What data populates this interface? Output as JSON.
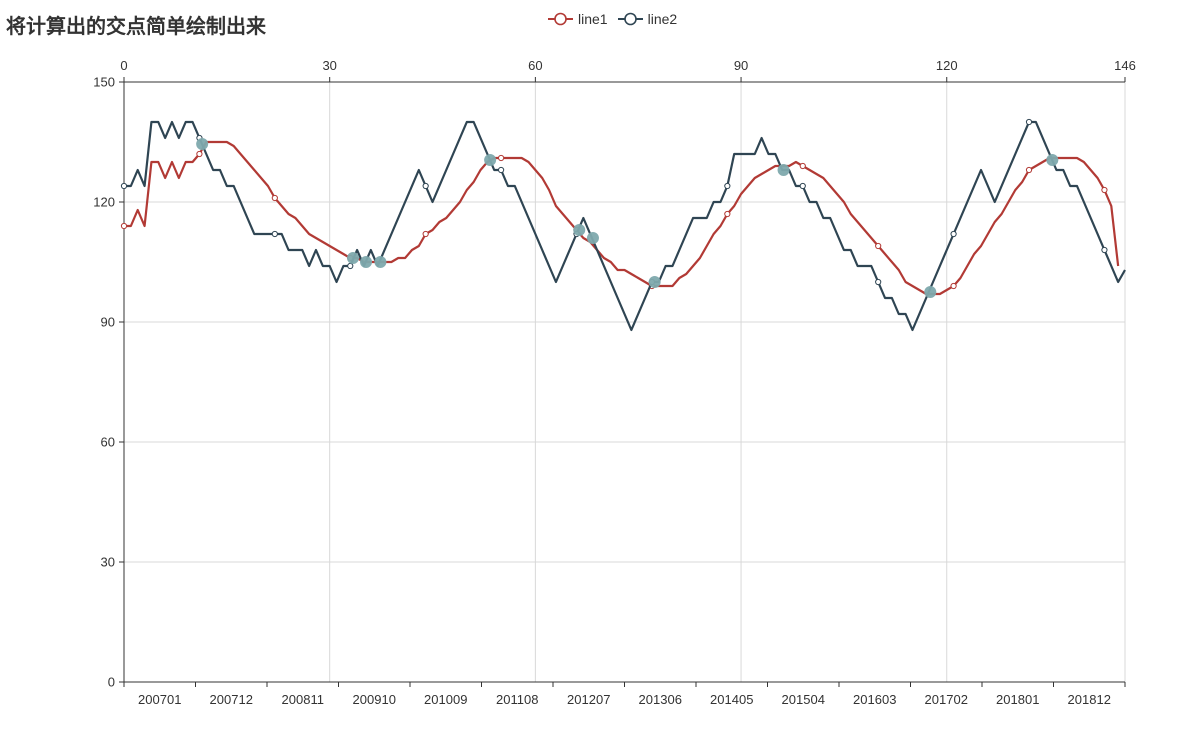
{
  "title": "将计算出的交点简单绘制出来",
  "legend": [
    {
      "name": "line1",
      "color": "#b23a35"
    },
    {
      "name": "line2",
      "color": "#2f4553"
    }
  ],
  "chart_data": {
    "type": "line",
    "title": "将计算出的交点简单绘制出来",
    "x_bottom": {
      "ticks": [
        "200701",
        "200712",
        "200811",
        "200910",
        "201009",
        "201108",
        "201207",
        "201306",
        "201405",
        "201504",
        "201603",
        "201702",
        "201801",
        "201812"
      ],
      "range": [
        200701,
        201812
      ]
    },
    "x_top": {
      "ticks": [
        0,
        30,
        60,
        90,
        120,
        146
      ],
      "range": [
        0,
        146
      ]
    },
    "y": {
      "ticks": [
        0,
        30,
        60,
        90,
        120,
        150
      ],
      "range": [
        0,
        150
      ]
    },
    "grid": true,
    "legend_position": "top-center",
    "series": [
      {
        "name": "line1",
        "color": "#b23a35",
        "points": [
          [
            0,
            114
          ],
          [
            1,
            114
          ],
          [
            2,
            118
          ],
          [
            3,
            114
          ],
          [
            4,
            130
          ],
          [
            5,
            130
          ],
          [
            6,
            126
          ],
          [
            7,
            130
          ],
          [
            8,
            126
          ],
          [
            9,
            130
          ],
          [
            10,
            130
          ],
          [
            11,
            132
          ],
          [
            12,
            135
          ],
          [
            13,
            135
          ],
          [
            14,
            135
          ],
          [
            15,
            135
          ],
          [
            16,
            134
          ],
          [
            17,
            132
          ],
          [
            18,
            130
          ],
          [
            19,
            128
          ],
          [
            20,
            126
          ],
          [
            21,
            124
          ],
          [
            22,
            121
          ],
          [
            23,
            119
          ],
          [
            24,
            117
          ],
          [
            25,
            116
          ],
          [
            26,
            114
          ],
          [
            27,
            112
          ],
          [
            28,
            111
          ],
          [
            29,
            110
          ],
          [
            30,
            109
          ],
          [
            31,
            108
          ],
          [
            32,
            107
          ],
          [
            33,
            106
          ],
          [
            34,
            106
          ],
          [
            35,
            105
          ],
          [
            36,
            105
          ],
          [
            37,
            105
          ],
          [
            38,
            105
          ],
          [
            39,
            105
          ],
          [
            40,
            106
          ],
          [
            41,
            106
          ],
          [
            42,
            108
          ],
          [
            43,
            109
          ],
          [
            44,
            112
          ],
          [
            45,
            113
          ],
          [
            46,
            115
          ],
          [
            47,
            116
          ],
          [
            48,
            118
          ],
          [
            49,
            120
          ],
          [
            50,
            123
          ],
          [
            51,
            125
          ],
          [
            52,
            128
          ],
          [
            53,
            130
          ],
          [
            54,
            131
          ],
          [
            55,
            131
          ],
          [
            56,
            131
          ],
          [
            57,
            131
          ],
          [
            58,
            131
          ],
          [
            59,
            130
          ],
          [
            60,
            128
          ],
          [
            61,
            126
          ],
          [
            62,
            123
          ],
          [
            63,
            119
          ],
          [
            64,
            117
          ],
          [
            65,
            115
          ],
          [
            66,
            113
          ],
          [
            67,
            111
          ],
          [
            68,
            110
          ],
          [
            69,
            108
          ],
          [
            70,
            106
          ],
          [
            71,
            105
          ],
          [
            72,
            103
          ],
          [
            73,
            103
          ],
          [
            74,
            102
          ],
          [
            75,
            101
          ],
          [
            76,
            100
          ],
          [
            77,
            99
          ],
          [
            78,
            99
          ],
          [
            79,
            99
          ],
          [
            80,
            99
          ],
          [
            81,
            101
          ],
          [
            82,
            102
          ],
          [
            83,
            104
          ],
          [
            84,
            106
          ],
          [
            85,
            109
          ],
          [
            86,
            112
          ],
          [
            87,
            114
          ],
          [
            88,
            117
          ],
          [
            89,
            119
          ],
          [
            90,
            122
          ],
          [
            91,
            124
          ],
          [
            92,
            126
          ],
          [
            93,
            127
          ],
          [
            94,
            128
          ],
          [
            95,
            129
          ],
          [
            96,
            129
          ],
          [
            97,
            129
          ],
          [
            98,
            130
          ],
          [
            99,
            129
          ],
          [
            100,
            128
          ],
          [
            101,
            127
          ],
          [
            102,
            126
          ],
          [
            103,
            124
          ],
          [
            104,
            122
          ],
          [
            105,
            120
          ],
          [
            106,
            117
          ],
          [
            107,
            115
          ],
          [
            108,
            113
          ],
          [
            109,
            111
          ],
          [
            110,
            109
          ],
          [
            111,
            107
          ],
          [
            112,
            105
          ],
          [
            113,
            103
          ],
          [
            114,
            100
          ],
          [
            115,
            99
          ],
          [
            116,
            98
          ],
          [
            117,
            97
          ],
          [
            118,
            97
          ],
          [
            119,
            97
          ],
          [
            120,
            98
          ],
          [
            121,
            99
          ],
          [
            122,
            101
          ],
          [
            123,
            104
          ],
          [
            124,
            107
          ],
          [
            125,
            109
          ],
          [
            126,
            112
          ],
          [
            127,
            115
          ],
          [
            128,
            117
          ],
          [
            129,
            120
          ],
          [
            130,
            123
          ],
          [
            131,
            125
          ],
          [
            132,
            128
          ],
          [
            133,
            129
          ],
          [
            134,
            130
          ],
          [
            135,
            131
          ],
          [
            136,
            131
          ],
          [
            137,
            131
          ],
          [
            138,
            131
          ],
          [
            139,
            131
          ],
          [
            140,
            130
          ],
          [
            141,
            128
          ],
          [
            142,
            126
          ],
          [
            143,
            123
          ],
          [
            144,
            119
          ],
          [
            145,
            104
          ]
        ]
      },
      {
        "name": "line2",
        "color": "#2f4553",
        "points": [
          [
            0,
            124
          ],
          [
            1,
            124
          ],
          [
            2,
            128
          ],
          [
            3,
            124
          ],
          [
            4,
            140
          ],
          [
            5,
            140
          ],
          [
            6,
            136
          ],
          [
            7,
            140
          ],
          [
            8,
            136
          ],
          [
            9,
            140
          ],
          [
            10,
            140
          ],
          [
            11,
            136
          ],
          [
            12,
            132
          ],
          [
            13,
            128
          ],
          [
            14,
            128
          ],
          [
            15,
            124
          ],
          [
            16,
            124
          ],
          [
            17,
            120
          ],
          [
            18,
            116
          ],
          [
            19,
            112
          ],
          [
            20,
            112
          ],
          [
            21,
            112
          ],
          [
            22,
            112
          ],
          [
            23,
            112
          ],
          [
            24,
            108
          ],
          [
            25,
            108
          ],
          [
            26,
            108
          ],
          [
            27,
            104
          ],
          [
            28,
            108
          ],
          [
            29,
            104
          ],
          [
            30,
            104
          ],
          [
            31,
            100
          ],
          [
            32,
            104
          ],
          [
            33,
            104
          ],
          [
            34,
            108
          ],
          [
            35,
            104
          ],
          [
            36,
            108
          ],
          [
            37,
            104
          ],
          [
            38,
            108
          ],
          [
            39,
            112
          ],
          [
            40,
            116
          ],
          [
            41,
            120
          ],
          [
            42,
            124
          ],
          [
            43,
            128
          ],
          [
            44,
            124
          ],
          [
            45,
            120
          ],
          [
            46,
            124
          ],
          [
            47,
            128
          ],
          [
            48,
            132
          ],
          [
            49,
            136
          ],
          [
            50,
            140
          ],
          [
            51,
            140
          ],
          [
            52,
            136
          ],
          [
            53,
            132
          ],
          [
            54,
            128
          ],
          [
            55,
            128
          ],
          [
            56,
            124
          ],
          [
            57,
            124
          ],
          [
            58,
            120
          ],
          [
            59,
            116
          ],
          [
            60,
            112
          ],
          [
            61,
            108
          ],
          [
            62,
            104
          ],
          [
            63,
            100
          ],
          [
            64,
            104
          ],
          [
            65,
            108
          ],
          [
            66,
            112
          ],
          [
            67,
            116
          ],
          [
            68,
            112
          ],
          [
            69,
            108
          ],
          [
            70,
            104
          ],
          [
            71,
            100
          ],
          [
            72,
            96
          ],
          [
            73,
            92
          ],
          [
            74,
            88
          ],
          [
            75,
            92
          ],
          [
            76,
            96
          ],
          [
            77,
            100
          ],
          [
            78,
            100
          ],
          [
            79,
            104
          ],
          [
            80,
            104
          ],
          [
            81,
            108
          ],
          [
            82,
            112
          ],
          [
            83,
            116
          ],
          [
            84,
            116
          ],
          [
            85,
            116
          ],
          [
            86,
            120
          ],
          [
            87,
            120
          ],
          [
            88,
            124
          ],
          [
            89,
            132
          ],
          [
            90,
            132
          ],
          [
            91,
            132
          ],
          [
            92,
            132
          ],
          [
            93,
            136
          ],
          [
            94,
            132
          ],
          [
            95,
            132
          ],
          [
            96,
            128
          ],
          [
            97,
            128
          ],
          [
            98,
            124
          ],
          [
            99,
            124
          ],
          [
            100,
            120
          ],
          [
            101,
            120
          ],
          [
            102,
            116
          ],
          [
            103,
            116
          ],
          [
            104,
            112
          ],
          [
            105,
            108
          ],
          [
            106,
            108
          ],
          [
            107,
            104
          ],
          [
            108,
            104
          ],
          [
            109,
            104
          ],
          [
            110,
            100
          ],
          [
            111,
            96
          ],
          [
            112,
            96
          ],
          [
            113,
            92
          ],
          [
            114,
            92
          ],
          [
            115,
            88
          ],
          [
            116,
            92
          ],
          [
            117,
            96
          ],
          [
            118,
            100
          ],
          [
            119,
            104
          ],
          [
            120,
            108
          ],
          [
            121,
            112
          ],
          [
            122,
            116
          ],
          [
            123,
            120
          ],
          [
            124,
            124
          ],
          [
            125,
            128
          ],
          [
            126,
            124
          ],
          [
            127,
            120
          ],
          [
            128,
            124
          ],
          [
            129,
            128
          ],
          [
            130,
            132
          ],
          [
            131,
            136
          ],
          [
            132,
            140
          ],
          [
            133,
            140
          ],
          [
            134,
            136
          ],
          [
            135,
            132
          ],
          [
            136,
            128
          ],
          [
            137,
            128
          ],
          [
            138,
            124
          ],
          [
            139,
            124
          ],
          [
            140,
            120
          ],
          [
            141,
            116
          ],
          [
            142,
            112
          ],
          [
            143,
            108
          ],
          [
            144,
            104
          ],
          [
            145,
            100
          ],
          [
            146,
            103
          ]
        ]
      }
    ],
    "intersections": [
      [
        11.4,
        134.5
      ],
      [
        33.4,
        106
      ],
      [
        35.3,
        105
      ],
      [
        37.4,
        105
      ],
      [
        53.4,
        130.5
      ],
      [
        66.4,
        113
      ],
      [
        68.4,
        111
      ],
      [
        77.4,
        100
      ],
      [
        96.2,
        128
      ],
      [
        117.6,
        97.5
      ],
      [
        135.4,
        130.5
      ]
    ]
  }
}
